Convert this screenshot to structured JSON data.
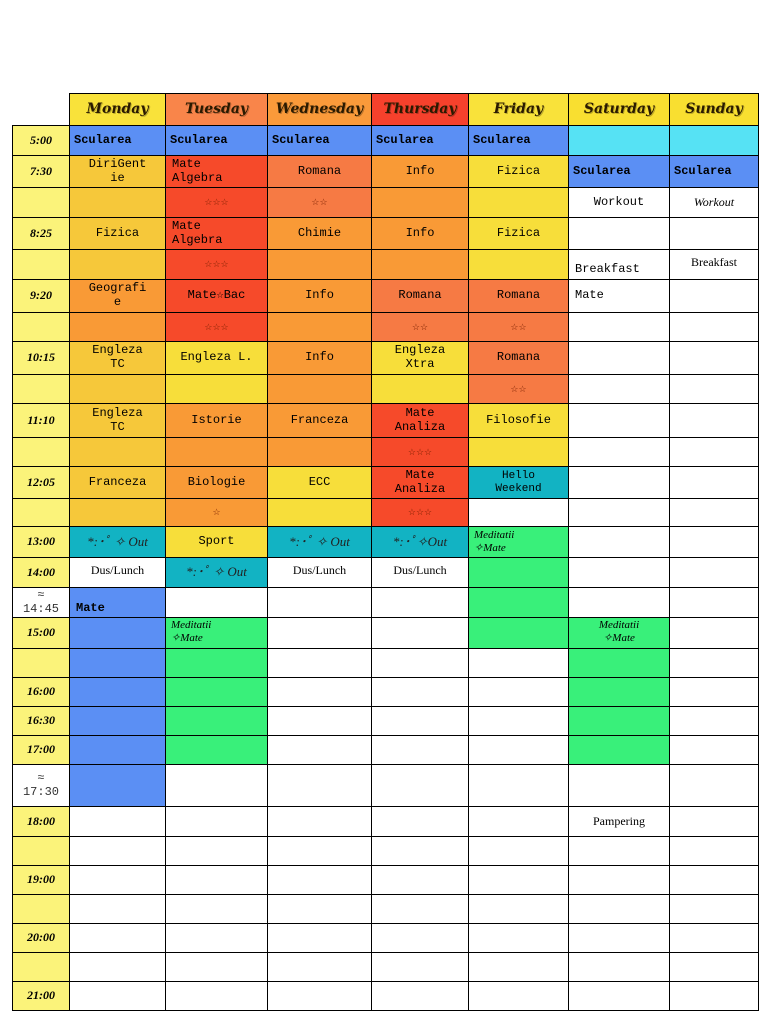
{
  "days": [
    "Monday",
    "Tuesday",
    "Wednesday",
    "Thursday",
    "Friday",
    "Saturday",
    "Sunday"
  ],
  "times": {
    "t0500": "5:00",
    "t0730": "7:30",
    "t0825": "8:25",
    "t0920": "9:20",
    "t1015": "10:15",
    "t1110": "11:10",
    "t1205": "12:05",
    "t1300": "13:00",
    "t1400": "14:00",
    "t1445": "≈\n14:45",
    "t1500": "15:00",
    "t1600": "16:00",
    "t1630": "16:30",
    "t1700": "17:00",
    "t1730": "≈\n17:30",
    "t1800": "18:00",
    "t1900": "19:00",
    "t2000": "20:00",
    "t2100": "21:00"
  },
  "cells": {
    "sc_mon": "Sculareа",
    "sc": "Scularea",
    "dirigentie": "DiriGent\nie",
    "mate_algebra": "Mate\nAlgebra",
    "romana": "Romana",
    "info": "Info",
    "fizica": "Fizica",
    "stars3": "☆☆☆",
    "stars2": "☆☆",
    "stars1": "☆",
    "workout": "Workout",
    "workout_it": "Workout",
    "chimie": "Chimie",
    "breakfast": "Breakfast",
    "breakfast_serif": "Breakfast",
    "geografie": "Geografi\ne",
    "mate_bac": "Mate☆Bac",
    "mate": "Mate",
    "engleza_tc": "Engleza\nTC",
    "engleza_l": "Engleza L.",
    "engleza_xtra": "Engleza\nXtra",
    "istorie": "Istorie",
    "franceza": "Franceza",
    "mate_analiza": "Mate\nAnaliza",
    "filosofie": "Filosofie",
    "biologie": "Biologie",
    "ecc": "ECC",
    "hello_weekend": "Hello\nWeekend",
    "out": "*:･ﾟ ✧ Out",
    "out_b": "*:･ﾟ✧Out",
    "sport": "Sport",
    "meditatii": "Meditatii\n✧Mate",
    "dus_lunch": "Dus/Lunch",
    "mate_mon": "Mate",
    "pampering": "Pampering"
  }
}
